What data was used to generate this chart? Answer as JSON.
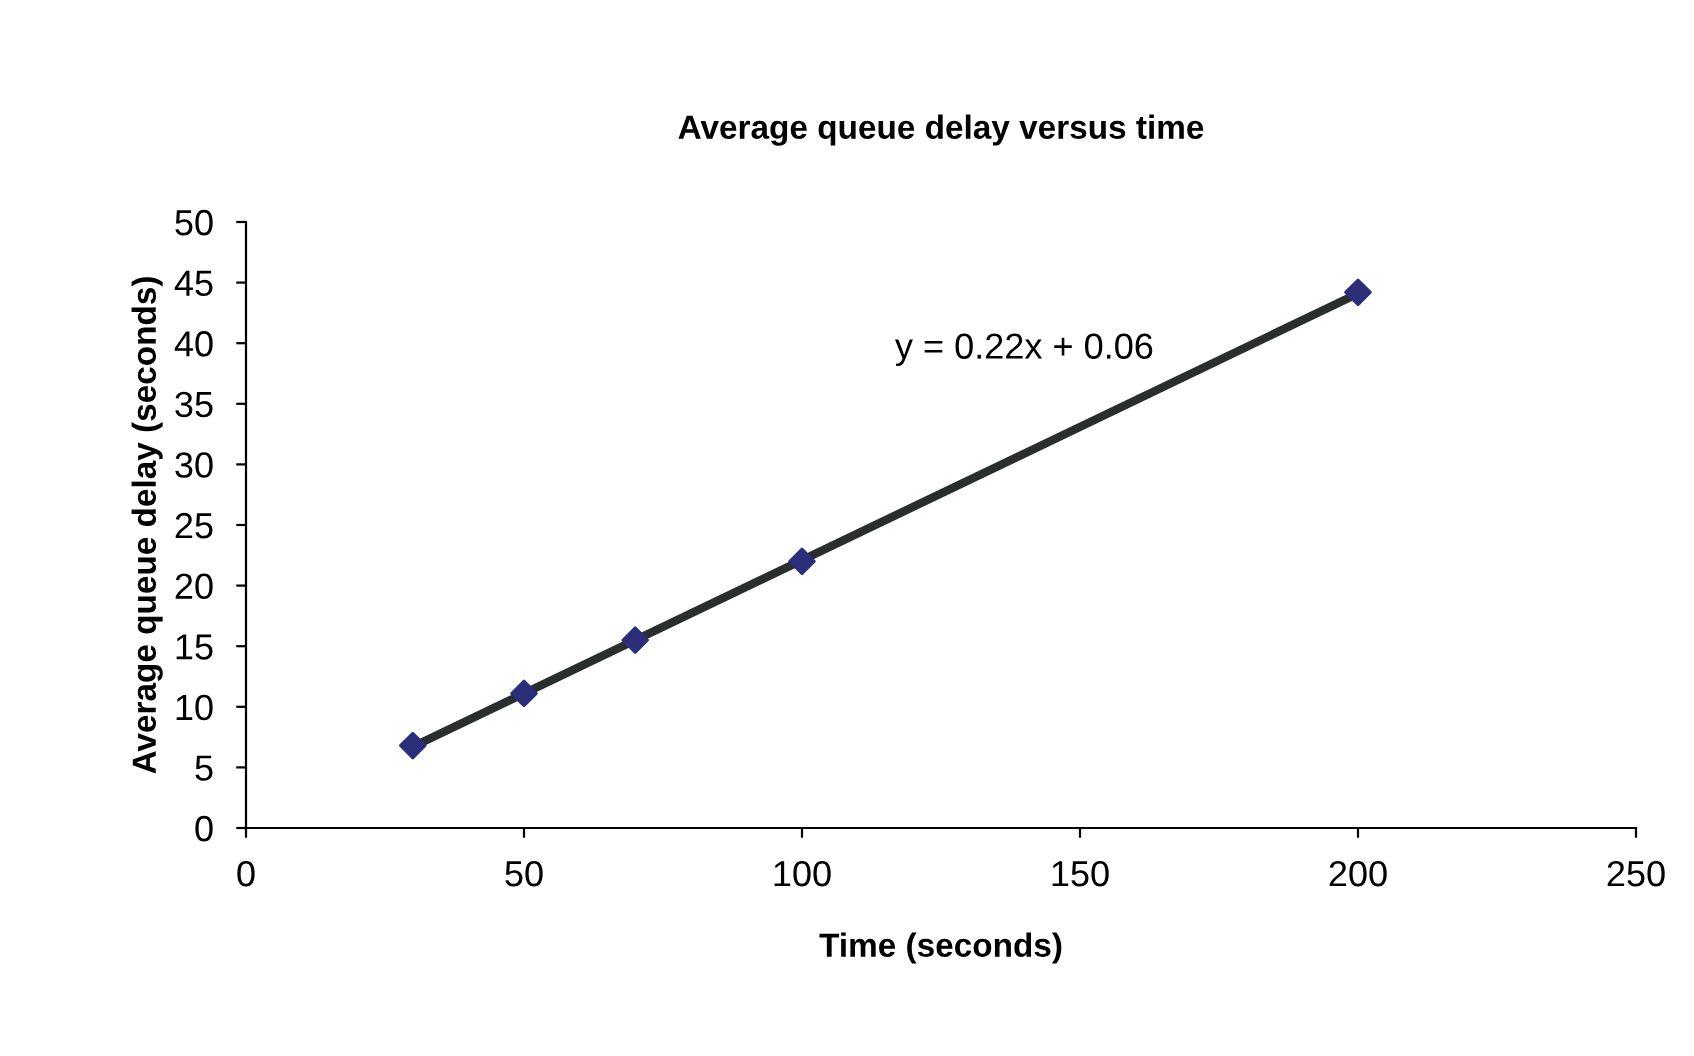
{
  "chart_data": {
    "type": "scatter",
    "title": "Average queue delay versus time",
    "xlabel": "Time (seconds)",
    "ylabel": "Average queue delay (seconds)",
    "series": [
      {
        "color": "#2b2f7a",
        "x": [
          30,
          50,
          70,
          100,
          200
        ],
        "values": [
          6.8,
          11.1,
          15.5,
          22,
          44.2
        ],
        "marker": "diamond"
      },
      {
        "type": "line",
        "color": "#2a2e2e",
        "x": [
          30,
          200
        ],
        "values": [
          6.7,
          44.1
        ],
        "marker": "none"
      }
    ],
    "annotations": [
      "y = 0.22x + 0.06"
    ],
    "xlim": [
      0,
      250
    ],
    "xticks": [
      0,
      50,
      100,
      150,
      200,
      250
    ],
    "ylim": [
      0,
      50
    ],
    "yticks": [
      0,
      5,
      10,
      15,
      20,
      25,
      30,
      35,
      40,
      45,
      50
    ],
    "grid": false,
    "legend": false
  }
}
